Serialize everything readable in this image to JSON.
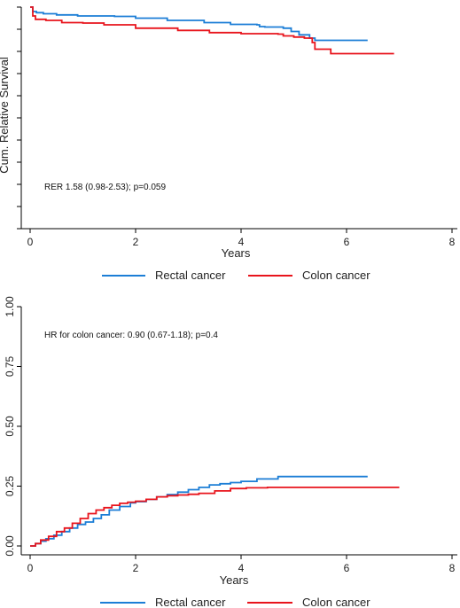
{
  "chart_data": [
    {
      "type": "line",
      "title": "",
      "xlabel": "Years",
      "ylabel": "Cum. Relative Survival",
      "xlim": [
        0,
        8
      ],
      "ylim": [
        0,
        1
      ],
      "x_ticks": [
        "0",
        "2",
        "4",
        "6",
        "8"
      ],
      "y_tick_count": 11,
      "y_tick_labels_shown": false,
      "grid": false,
      "legend": "bottom",
      "annotation": "RER 1.58 (0.98-2.53); p=0.059",
      "series": [
        {
          "name": "Rectal cancer",
          "color": "#1c7ed6",
          "x": [
            0,
            0.05,
            0.12,
            0.25,
            0.5,
            0.9,
            1.6,
            2.0,
            2.6,
            3.3,
            3.8,
            4.3,
            4.35,
            4.45,
            4.6,
            4.8,
            4.95,
            5.1,
            5.3,
            5.4,
            6.4
          ],
          "y": [
            1.0,
            0.98,
            0.975,
            0.97,
            0.965,
            0.96,
            0.958,
            0.95,
            0.94,
            0.93,
            0.922,
            0.92,
            0.912,
            0.91,
            0.91,
            0.905,
            0.89,
            0.875,
            0.86,
            0.85,
            0.85
          ]
        },
        {
          "name": "Colon cancer",
          "color": "#e8141c",
          "x": [
            0,
            0.05,
            0.1,
            0.3,
            0.6,
            1.0,
            1.4,
            2.0,
            2.8,
            3.4,
            4.0,
            4.7,
            4.8,
            5.0,
            5.2,
            5.35,
            5.4,
            5.7,
            6.9
          ],
          "y": [
            1.0,
            0.96,
            0.945,
            0.94,
            0.93,
            0.928,
            0.92,
            0.905,
            0.895,
            0.885,
            0.88,
            0.878,
            0.87,
            0.865,
            0.86,
            0.84,
            0.81,
            0.79,
            0.79
          ]
        }
      ]
    },
    {
      "type": "line",
      "title": "",
      "xlabel": "Years",
      "ylabel": "",
      "xlim": [
        0,
        8
      ],
      "ylim": [
        0,
        1
      ],
      "x_ticks": [
        "0",
        "2",
        "4",
        "6",
        "8"
      ],
      "y_ticks": [
        "0.00",
        "0.25",
        "0.50",
        "0.75",
        "1.00"
      ],
      "grid": false,
      "legend": "bottom",
      "annotation": "HR for colon cancer: 0.90 (0.67-1.18); p=0.4",
      "series": [
        {
          "name": "Rectal cancer",
          "color": "#1c7ed6",
          "x": [
            0,
            0.1,
            0.2,
            0.3,
            0.45,
            0.6,
            0.75,
            0.9,
            1.05,
            1.2,
            1.35,
            1.5,
            1.7,
            1.9,
            2.0,
            2.2,
            2.4,
            2.6,
            2.8,
            3.0,
            3.2,
            3.4,
            3.6,
            3.8,
            4.0,
            4.3,
            4.7,
            6.4
          ],
          "y": [
            0.0,
            0.01,
            0.02,
            0.03,
            0.045,
            0.06,
            0.075,
            0.09,
            0.1,
            0.115,
            0.13,
            0.15,
            0.165,
            0.18,
            0.185,
            0.195,
            0.205,
            0.215,
            0.225,
            0.235,
            0.245,
            0.255,
            0.26,
            0.265,
            0.27,
            0.28,
            0.29,
            0.29
          ]
        },
        {
          "name": "Colon cancer",
          "color": "#e8141c",
          "x": [
            0,
            0.1,
            0.2,
            0.35,
            0.5,
            0.65,
            0.8,
            0.95,
            1.1,
            1.25,
            1.4,
            1.55,
            1.7,
            1.85,
            2.0,
            2.2,
            2.4,
            2.6,
            2.8,
            3.0,
            3.2,
            3.5,
            3.8,
            4.1,
            4.5,
            5.0,
            6.0,
            7.0
          ],
          "y": [
            0.0,
            0.01,
            0.025,
            0.04,
            0.06,
            0.075,
            0.095,
            0.115,
            0.135,
            0.15,
            0.16,
            0.17,
            0.178,
            0.183,
            0.187,
            0.195,
            0.205,
            0.21,
            0.213,
            0.216,
            0.22,
            0.23,
            0.24,
            0.243,
            0.245,
            0.245,
            0.245,
            0.245
          ]
        }
      ]
    }
  ]
}
